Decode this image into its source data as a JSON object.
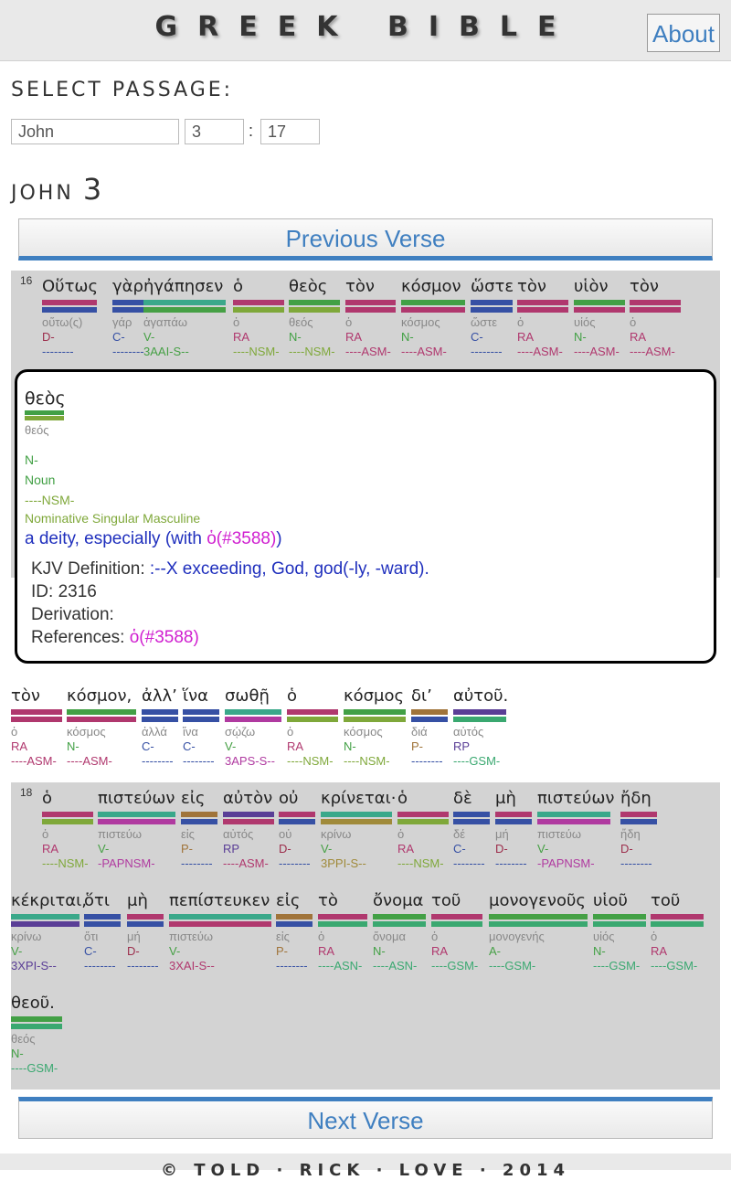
{
  "header": {
    "title": "GREEK BIBLE",
    "about_label": "About"
  },
  "passage": {
    "label": "SELECT PASSAGE:",
    "book": "John",
    "chapter": "3",
    "verse": "17"
  },
  "heading": {
    "book": "JOHN",
    "chapter": "3"
  },
  "nav": {
    "prev_label": "Previous Verse",
    "next_label": "Next Verse"
  },
  "colors": {
    "RA": "#b0386e",
    "C": "#3650a4",
    "V": "#46a045",
    "N": "#42a045",
    "P": "#a0743a",
    "RP": "#5a3e96",
    "D": "#9c2e4c",
    "A": "#46a045"
  },
  "verses": [
    {
      "number": "16",
      "lines": [
        [
          {
            "greek": "Οὕτως",
            "lemma": "οὕτω(ς)",
            "pos": "D-",
            "parse": "--------",
            "bar": "#b0386e|#3650a4",
            "posc": "#9c2e4c",
            "parsec": "#3650a4"
          },
          {
            "greek": "γὰρ",
            "lemma": "γάρ",
            "pos": "C-",
            "parse": "--------",
            "bar": "#3650a4|#3650a4",
            "posc": "#3650a4",
            "parsec": "#3650a4"
          },
          {
            "greek": "ἠγάπησεν",
            "lemma": "ἀγαπάω",
            "pos": "V-",
            "parse": "3AAI-S--",
            "bar": "#3aa88a|#46a045",
            "posc": "#46a045",
            "parsec": "#46a045"
          },
          {
            "greek": "ὁ",
            "lemma": "ὁ",
            "pos": "RA",
            "parse": "----NSM-",
            "bar": "#b0386e|#7fa83a",
            "posc": "#b0386e",
            "parsec": "#7fa83a"
          },
          {
            "greek": "θεὸς",
            "lemma": "θεός",
            "pos": "N-",
            "parse": "----NSM-",
            "bar": "#42a045|#7fa83a",
            "posc": "#42a045",
            "parsec": "#7fa83a"
          },
          {
            "greek": "τὸν",
            "lemma": "ὁ",
            "pos": "RA",
            "parse": "----ASM-",
            "bar": "#b0386e|#b0386e",
            "posc": "#b0386e",
            "parsec": "#b0386e"
          },
          {
            "greek": "κόσμον",
            "lemma": "κόσμος",
            "pos": "N-",
            "parse": "----ASM-",
            "bar": "#42a045|#b0386e",
            "posc": "#42a045",
            "parsec": "#b0386e"
          },
          {
            "greek": "ὥστε",
            "lemma": "ὥστε",
            "pos": "C-",
            "parse": "--------",
            "bar": "#3650a4|#3650a4",
            "posc": "#3650a4",
            "parsec": "#3650a4"
          },
          {
            "greek": "τὸν",
            "lemma": "ὁ",
            "pos": "RA",
            "parse": "----ASM-",
            "bar": "#b0386e|#b0386e",
            "posc": "#b0386e",
            "parsec": "#b0386e"
          },
          {
            "greek": "υἱὸν",
            "lemma": "υἱός",
            "pos": "N-",
            "parse": "----ASM-",
            "bar": "#42a045|#b0386e",
            "posc": "#42a045",
            "parsec": "#b0386e"
          },
          {
            "greek": "τὸν",
            "lemma": "ὁ",
            "pos": "RA",
            "parse": "----ASM-",
            "bar": "#b0386e|#b0386e",
            "posc": "#b0386e",
            "parsec": "#b0386e"
          }
        ]
      ]
    },
    {
      "number": "",
      "lines": [
        [
          {
            "greek": "τὸν",
            "lemma": "ὁ",
            "pos": "RA",
            "parse": "----ASM-",
            "bar": "#b0386e|#b0386e",
            "posc": "#b0386e",
            "parsec": "#b0386e"
          },
          {
            "greek": "κόσμον,",
            "lemma": "κόσμος",
            "pos": "N-",
            "parse": "----ASM-",
            "bar": "#42a045|#b0386e",
            "posc": "#42a045",
            "parsec": "#b0386e"
          },
          {
            "greek": "ἀλλ’",
            "lemma": "ἀλλά",
            "pos": "C-",
            "parse": "--------",
            "bar": "#3650a4|#3650a4",
            "posc": "#3650a4",
            "parsec": "#3650a4"
          },
          {
            "greek": "ἵνα",
            "lemma": "ἵνα",
            "pos": "C-",
            "parse": "--------",
            "bar": "#3650a4|#3650a4",
            "posc": "#3650a4",
            "parsec": "#3650a4"
          },
          {
            "greek": "σωθῇ",
            "lemma": "σῴζω",
            "pos": "V-",
            "parse": "3APS-S--",
            "bar": "#3aa88a|#b03aa0",
            "posc": "#46a045",
            "parsec": "#b03aa0"
          },
          {
            "greek": "ὁ",
            "lemma": "ὁ",
            "pos": "RA",
            "parse": "----NSM-",
            "bar": "#b0386e|#7fa83a",
            "posc": "#b0386e",
            "parsec": "#7fa83a"
          },
          {
            "greek": "κόσμος",
            "lemma": "κόσμος",
            "pos": "N-",
            "parse": "----NSM-",
            "bar": "#42a045|#7fa83a",
            "posc": "#42a045",
            "parsec": "#7fa83a"
          },
          {
            "greek": "δι’",
            "lemma": "διά",
            "pos": "P-",
            "parse": "--------",
            "bar": "#a0743a|#3650a4",
            "posc": "#a0743a",
            "parsec": "#3650a4"
          },
          {
            "greek": "αὐτοῦ.",
            "lemma": "αὐτός",
            "pos": "RP",
            "parse": "----GSM-",
            "bar": "#5a3e96|#3aa870",
            "posc": "#5a3e96",
            "parsec": "#3aa870"
          }
        ]
      ]
    },
    {
      "number": "18",
      "lines": [
        [
          {
            "greek": "ὁ",
            "lemma": "ὁ",
            "pos": "RA",
            "parse": "----NSM-",
            "bar": "#b0386e|#7fa83a",
            "posc": "#b0386e",
            "parsec": "#7fa83a"
          },
          {
            "greek": "πιστεύων",
            "lemma": "πιστεύω",
            "pos": "V-",
            "parse": "-PAPNSM-",
            "bar": "#3aa88a|#b03aa0",
            "posc": "#46a045",
            "parsec": "#b03aa0"
          },
          {
            "greek": "εἰς",
            "lemma": "εἰς",
            "pos": "P-",
            "parse": "--------",
            "bar": "#a0743a|#3650a4",
            "posc": "#a0743a",
            "parsec": "#3650a4"
          },
          {
            "greek": "αὐτὸν",
            "lemma": "αὐτός",
            "pos": "RP",
            "parse": "----ASM-",
            "bar": "#5a3e96|#b0386e",
            "posc": "#5a3e96",
            "parsec": "#b0386e"
          },
          {
            "greek": "οὐ",
            "lemma": "οὐ",
            "pos": "D-",
            "parse": "--------",
            "bar": "#b0386e|#3650a4",
            "posc": "#9c2e4c",
            "parsec": "#3650a4"
          },
          {
            "greek": "κρίνεται·",
            "lemma": "κρίνω",
            "pos": "V-",
            "parse": "3PPI-S--",
            "bar": "#3aa88a|#a08a3a",
            "posc": "#46a045",
            "parsec": "#a08a3a"
          },
          {
            "greek": "ὁ",
            "lemma": "ὁ",
            "pos": "RA",
            "parse": "----NSM-",
            "bar": "#b0386e|#7fa83a",
            "posc": "#b0386e",
            "parsec": "#7fa83a"
          },
          {
            "greek": "δὲ",
            "lemma": "δέ",
            "pos": "C-",
            "parse": "--------",
            "bar": "#3650a4|#3650a4",
            "posc": "#3650a4",
            "parsec": "#3650a4"
          },
          {
            "greek": "μὴ",
            "lemma": "μή",
            "pos": "D-",
            "parse": "--------",
            "bar": "#b0386e|#3650a4",
            "posc": "#9c2e4c",
            "parsec": "#3650a4"
          },
          {
            "greek": "πιστεύων",
            "lemma": "πιστεύω",
            "pos": "V-",
            "parse": "-PAPNSM-",
            "bar": "#3aa88a|#b03aa0",
            "posc": "#46a045",
            "parsec": "#b03aa0"
          },
          {
            "greek": "ἤδη",
            "lemma": "ἤδη",
            "pos": "D-",
            "parse": "--------",
            "bar": "#b0386e|#3650a4",
            "posc": "#9c2e4c",
            "parsec": "#3650a4"
          }
        ],
        [
          {
            "greek": "κέκριται,",
            "lemma": "κρίνω",
            "pos": "V-",
            "parse": "3XPI-S--",
            "bar": "#3aa88a|#5a3e96",
            "posc": "#46a045",
            "parsec": "#5a3e96"
          },
          {
            "greek": "ὅτι",
            "lemma": "ὅτι",
            "pos": "C-",
            "parse": "--------",
            "bar": "#3650a4|#3650a4",
            "posc": "#3650a4",
            "parsec": "#3650a4"
          },
          {
            "greek": "μὴ",
            "lemma": "μή",
            "pos": "D-",
            "parse": "--------",
            "bar": "#b0386e|#3650a4",
            "posc": "#9c2e4c",
            "parsec": "#3650a4"
          },
          {
            "greek": "πεπίστευκεν",
            "lemma": "πιστεύω",
            "pos": "V-",
            "parse": "3XAI-S--",
            "bar": "#3aa88a|#b0386e",
            "posc": "#46a045",
            "parsec": "#b0386e"
          },
          {
            "greek": "εἰς",
            "lemma": "εἰς",
            "pos": "P-",
            "parse": "--------",
            "bar": "#a0743a|#3650a4",
            "posc": "#a0743a",
            "parsec": "#3650a4"
          },
          {
            "greek": "τὸ",
            "lemma": "ὁ",
            "pos": "RA",
            "parse": "----ASN-",
            "bar": "#b0386e|#3aa870",
            "posc": "#b0386e",
            "parsec": "#3aa870"
          },
          {
            "greek": "ὄνομα",
            "lemma": "ὄνομα",
            "pos": "N-",
            "parse": "----ASN-",
            "bar": "#42a045|#3aa870",
            "posc": "#42a045",
            "parsec": "#3aa870"
          },
          {
            "greek": "τοῦ",
            "lemma": "ὁ",
            "pos": "RA",
            "parse": "----GSM-",
            "bar": "#b0386e|#3aa870",
            "posc": "#b0386e",
            "parsec": "#3aa870"
          },
          {
            "greek": "μονογενοῦς",
            "lemma": "μονογενής",
            "pos": "A-",
            "parse": "----GSM-",
            "bar": "#46a045|#3aa870",
            "posc": "#46a045",
            "parsec": "#3aa870"
          },
          {
            "greek": "υἱοῦ",
            "lemma": "υἱός",
            "pos": "N-",
            "parse": "----GSM-",
            "bar": "#42a045|#3aa870",
            "posc": "#42a045",
            "parsec": "#3aa870"
          },
          {
            "greek": "τοῦ",
            "lemma": "ὁ",
            "pos": "RA",
            "parse": "----GSM-",
            "bar": "#b0386e|#3aa870",
            "posc": "#b0386e",
            "parsec": "#3aa870"
          }
        ],
        [
          {
            "greek": "θεοῦ.",
            "lemma": "θεός",
            "pos": "N-",
            "parse": "----GSM-",
            "bar": "#42a045|#3aa870",
            "posc": "#42a045",
            "parsec": "#3aa870"
          }
        ]
      ]
    }
  ],
  "popup": {
    "word": "θεὸς",
    "lemma": "θεός",
    "pos_code": "N-",
    "pos_name": "Noun",
    "parse_code": "----NSM-",
    "parse_name": "Nominative Singular Masculine",
    "definition_prefix": "a deity, especially (with ",
    "definition_link": "ὁ(#3588)",
    "definition_suffix": ")",
    "kjv_label": "KJV Definition:",
    "kjv_value": ":--X exceeding, God, god(-ly, -ward).",
    "id_label": "ID:",
    "id_value": "2316",
    "derivation_label": "Derivation:",
    "references_label": "References:",
    "references_link": "ὁ(#3588)"
  },
  "footer": {
    "text": "© TOLD · RICK · LOVE · 2014"
  }
}
